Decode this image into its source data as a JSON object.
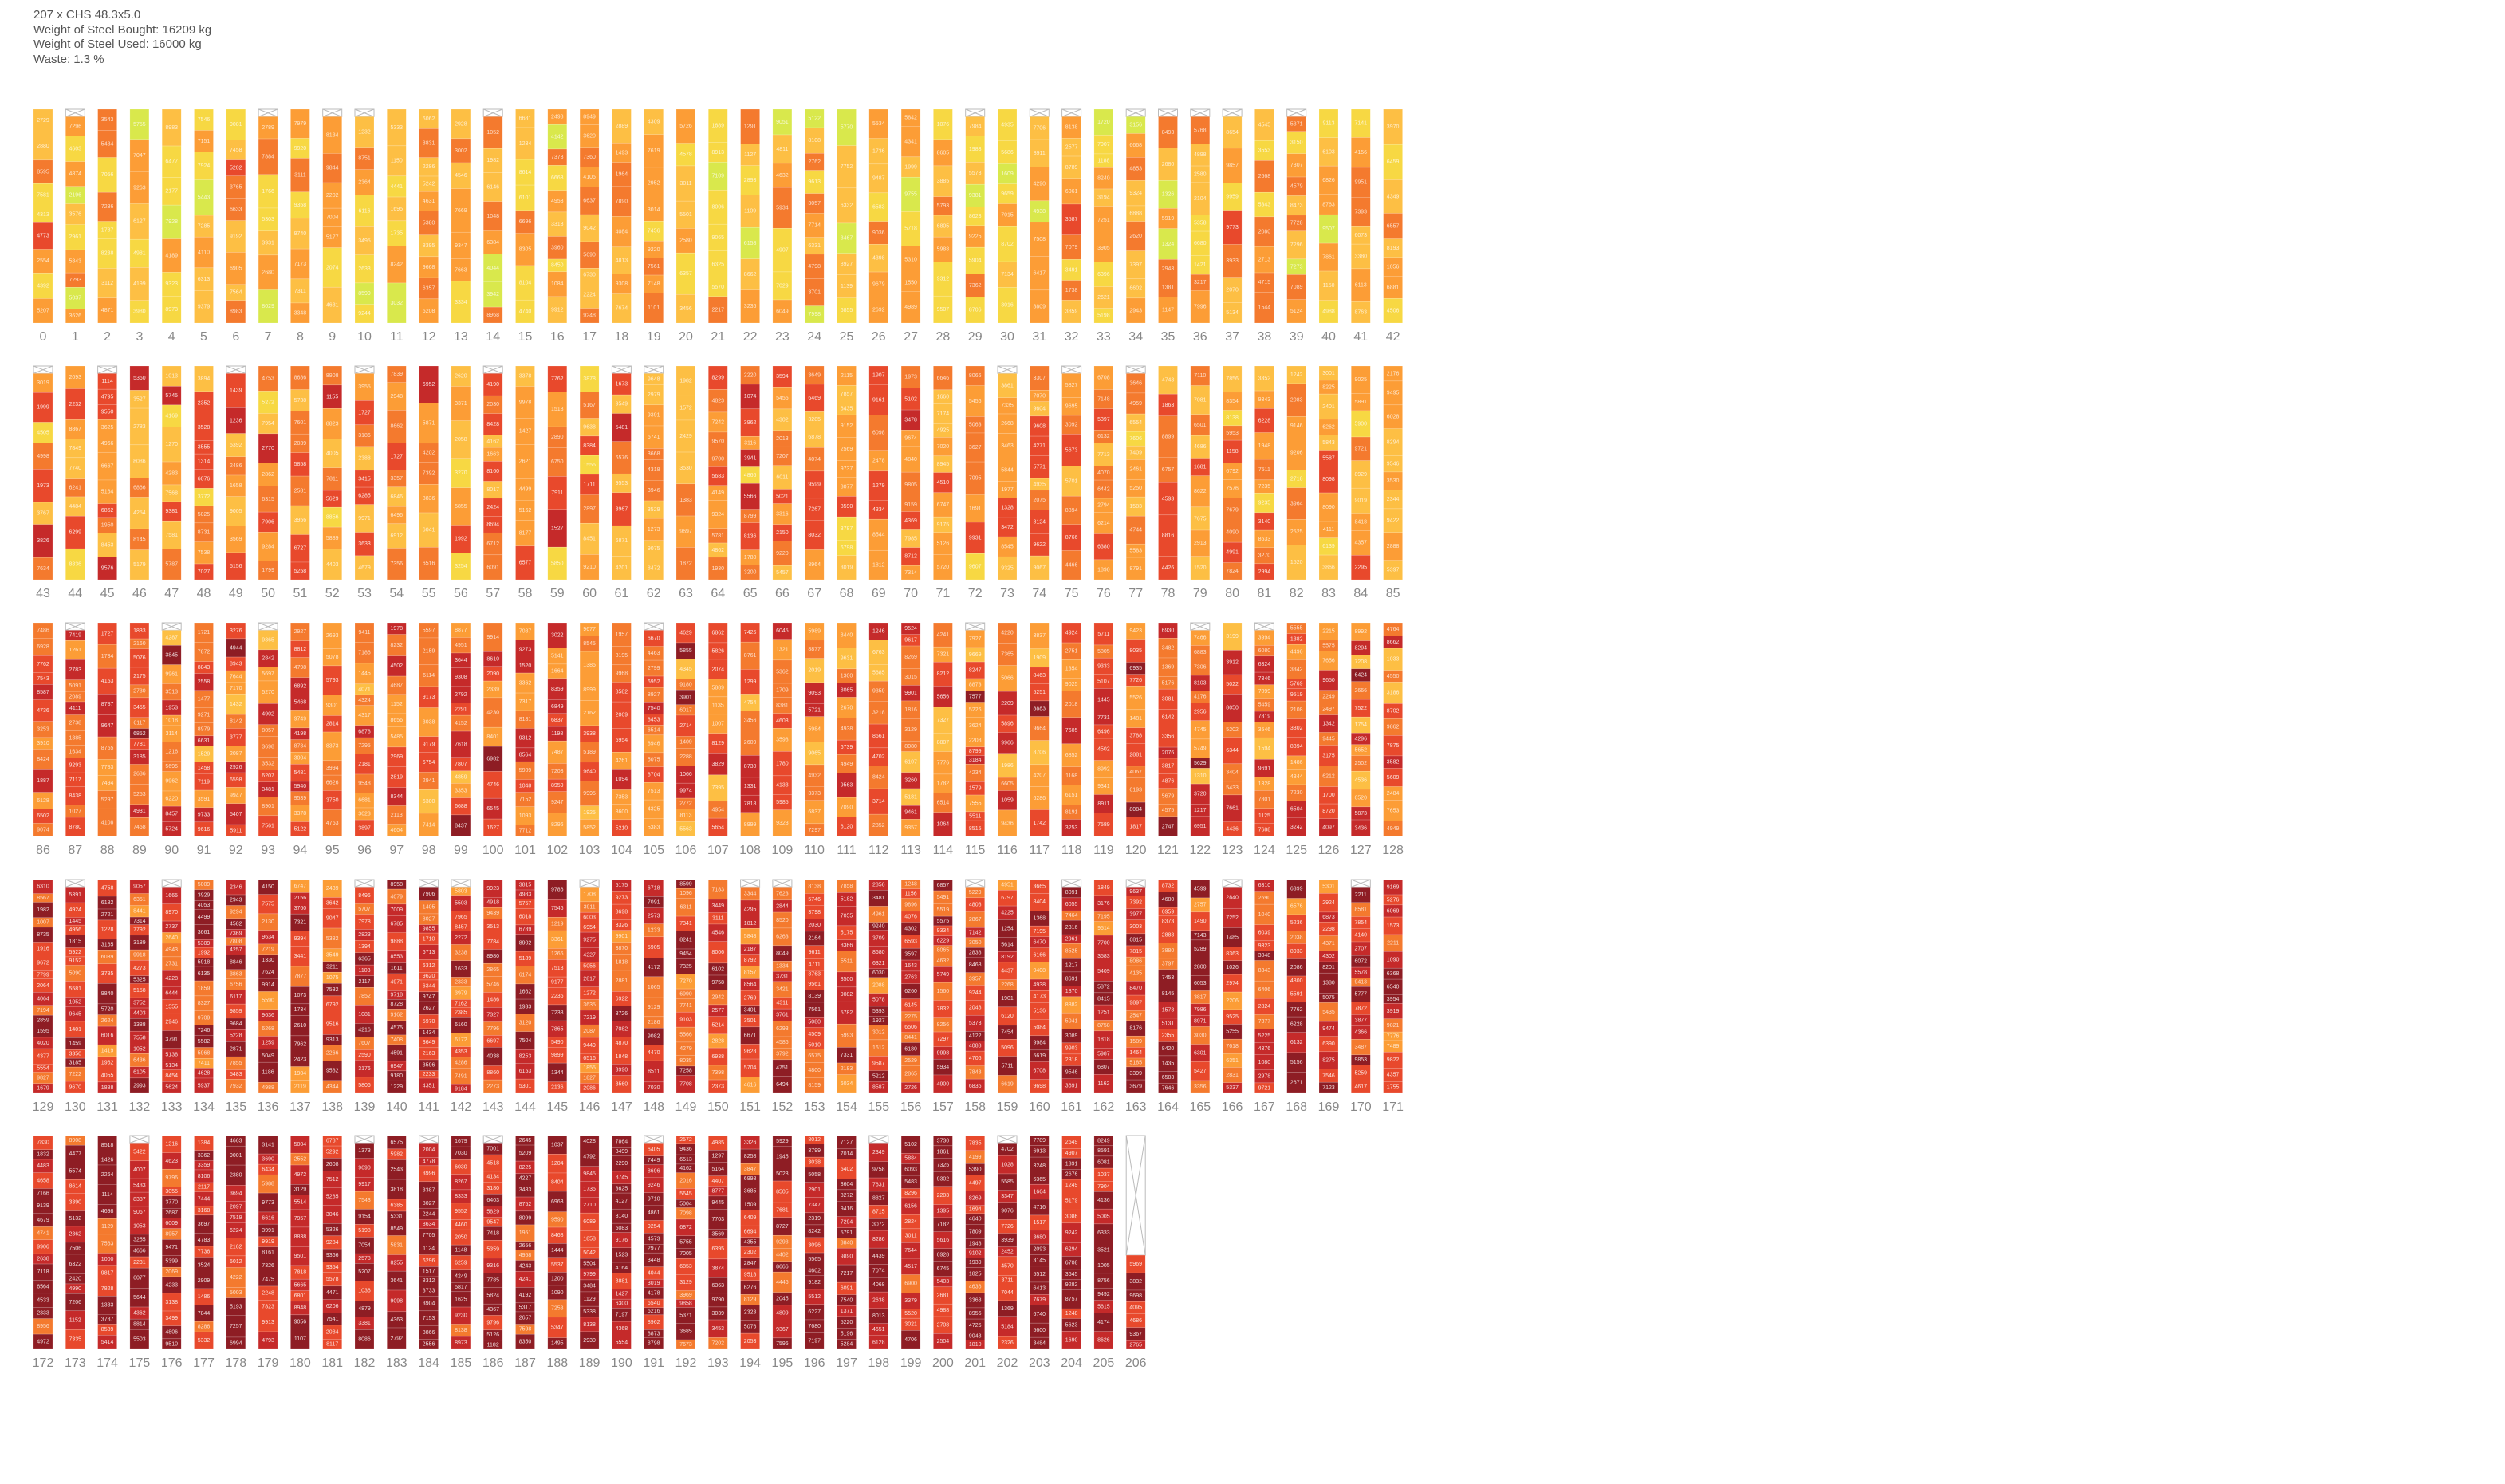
{
  "header": {
    "line1": "207 x CHS 48.3x5.0",
    "line2": "Weight of Steel Bought: 16209 kg",
    "line3": "Weight of Steel Used: 16000 kg",
    "line4": "Waste: 1.3 %"
  },
  "chart_data": {
    "type": "stacked-bar",
    "stock_count": 207,
    "section": "CHS 48.3x5.0",
    "weight_bought_kg": 16209,
    "weight_used_kg": 16000,
    "waste_percent": 1.3,
    "bar_labels": "0..206",
    "rows_of_bars": [
      [
        0,
        42
      ],
      [
        43,
        85
      ],
      [
        86,
        128
      ],
      [
        129,
        171
      ],
      [
        172,
        206
      ]
    ],
    "empty_bar": 206,
    "legend": "none"
  },
  "colors": {
    "yellow_green": "#d9e84c",
    "yellow": "#f7d843",
    "light_orange": "#fdbf44",
    "orange": "#fc9d36",
    "dark_orange": "#f47a2e",
    "red_orange": "#e8492c",
    "red": "#c52a2a",
    "dark_red": "#8e1d24",
    "waste_outline": "#bbbbbb",
    "index_text": "#888888"
  }
}
